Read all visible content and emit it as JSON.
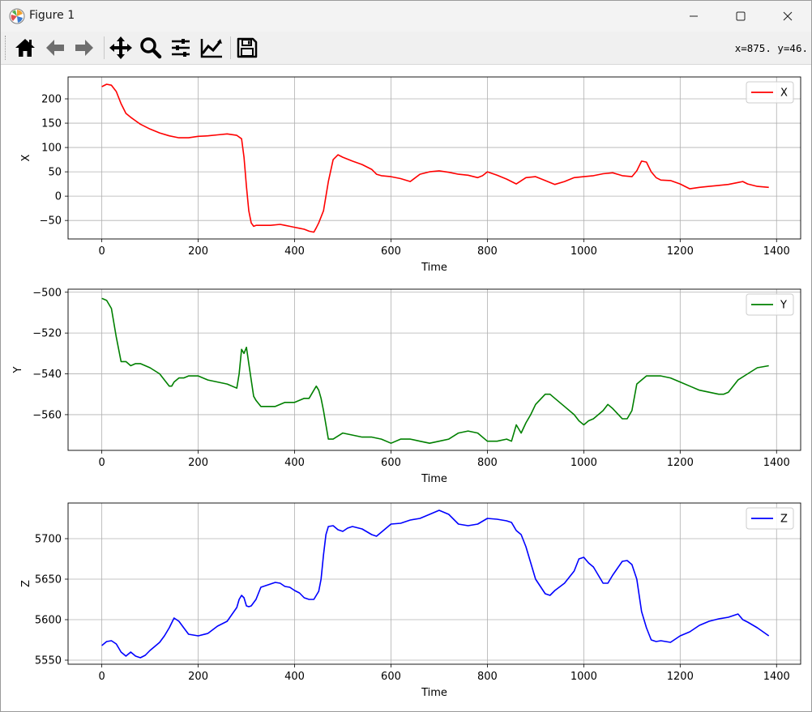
{
  "window": {
    "title": "Figure 1",
    "controls": [
      "minimize",
      "maximize",
      "close"
    ]
  },
  "toolbar": {
    "buttons": [
      {
        "name": "home-icon",
        "tooltip": "Reset original view"
      },
      {
        "name": "back-arrow-icon",
        "tooltip": "Back to previous view"
      },
      {
        "name": "forward-arrow-icon",
        "tooltip": "Forward to next view"
      },
      {
        "name": "pan-move-icon",
        "tooltip": "Pan axes"
      },
      {
        "name": "zoom-magnifier-icon",
        "tooltip": "Zoom to rectangle"
      },
      {
        "name": "configure-subplots-icon",
        "tooltip": "Configure subplots"
      },
      {
        "name": "edit-axis-icon",
        "tooltip": "Edit axis, curve and image parameters"
      },
      {
        "name": "save-floppy-icon",
        "tooltip": "Save the figure"
      }
    ],
    "coords": "x=875.  y=46."
  },
  "colors": {
    "x_line": "#ff0000",
    "y_line": "#008000",
    "z_line": "#0000ff",
    "grid": "#b0b0b0"
  },
  "chart_data": [
    {
      "type": "line",
      "xlabel": "Time",
      "ylabel": "X",
      "xlim": [
        -70,
        1450
      ],
      "ylim": [
        -88,
        245
      ],
      "xticks": [
        0,
        200,
        400,
        600,
        800,
        1000,
        1200,
        1400
      ],
      "yticks": [
        -50,
        0,
        50,
        100,
        150,
        200
      ],
      "grid": true,
      "legend": "top-right",
      "series": [
        {
          "name": "X",
          "color": "#ff0000",
          "x": [
            0,
            10,
            20,
            30,
            40,
            50,
            60,
            70,
            80,
            100,
            120,
            140,
            160,
            180,
            200,
            220,
            240,
            260,
            280,
            290,
            295,
            300,
            305,
            310,
            315,
            320,
            330,
            350,
            370,
            380,
            390,
            400,
            410,
            420,
            430,
            440,
            445,
            450,
            460,
            470,
            480,
            490,
            500,
            520,
            540,
            560,
            570,
            580,
            600,
            620,
            640,
            660,
            680,
            700,
            720,
            740,
            760,
            780,
            790,
            800,
            820,
            840,
            860,
            880,
            900,
            920,
            940,
            960,
            980,
            1000,
            1020,
            1040,
            1060,
            1080,
            1100,
            1110,
            1120,
            1130,
            1140,
            1150,
            1160,
            1180,
            1200,
            1220,
            1240,
            1260,
            1280,
            1300,
            1320,
            1330,
            1340,
            1360,
            1384
          ],
          "y": [
            225,
            230,
            228,
            215,
            190,
            170,
            162,
            155,
            148,
            138,
            130,
            124,
            120,
            120,
            123,
            124,
            126,
            128,
            125,
            118,
            80,
            20,
            -30,
            -55,
            -62,
            -60,
            -60,
            -60,
            -58,
            -60,
            -62,
            -64,
            -66,
            -68,
            -72,
            -74,
            -65,
            -55,
            -30,
            30,
            75,
            85,
            80,
            72,
            65,
            55,
            45,
            42,
            40,
            36,
            30,
            45,
            50,
            52,
            49,
            45,
            43,
            38,
            42,
            50,
            43,
            35,
            25,
            38,
            40,
            32,
            24,
            30,
            38,
            40,
            42,
            46,
            48,
            42,
            40,
            52,
            72,
            70,
            50,
            38,
            33,
            32,
            25,
            15,
            18,
            20,
            22,
            24,
            28,
            30,
            25,
            20,
            18
          ]
        }
      ]
    },
    {
      "type": "line",
      "xlabel": "Time",
      "ylabel": "Y",
      "xlim": [
        -70,
        1450
      ],
      "ylim": [
        -577.5,
        -498.5
      ],
      "xticks": [
        0,
        200,
        400,
        600,
        800,
        1000,
        1200,
        1400
      ],
      "yticks": [
        -500,
        -520,
        -540,
        -560
      ],
      "grid": true,
      "legend": "top-right",
      "series": [
        {
          "name": "Y",
          "color": "#008000",
          "x": [
            0,
            10,
            20,
            30,
            40,
            50,
            60,
            70,
            80,
            100,
            120,
            140,
            145,
            150,
            160,
            170,
            180,
            200,
            220,
            240,
            260,
            280,
            285,
            290,
            295,
            300,
            305,
            310,
            315,
            320,
            330,
            340,
            360,
            380,
            400,
            420,
            430,
            440,
            445,
            450,
            455,
            460,
            470,
            480,
            500,
            520,
            540,
            560,
            580,
            600,
            620,
            640,
            660,
            680,
            700,
            720,
            740,
            760,
            780,
            800,
            820,
            840,
            850,
            860,
            870,
            880,
            890,
            900,
            920,
            930,
            940,
            960,
            980,
            990,
            1000,
            1010,
            1020,
            1040,
            1050,
            1060,
            1080,
            1090,
            1100,
            1110,
            1120,
            1130,
            1140,
            1160,
            1180,
            1200,
            1220,
            1240,
            1260,
            1280,
            1290,
            1300,
            1310,
            1320,
            1340,
            1360,
            1384
          ],
          "y": [
            -503,
            -504,
            -508,
            -522,
            -534,
            -534,
            -536,
            -535,
            -535,
            -537,
            -540,
            -546,
            -546,
            -544,
            -542,
            -542,
            -541,
            -541,
            -543,
            -544,
            -545,
            -547,
            -540,
            -528,
            -530,
            -527,
            -535,
            -543,
            -551,
            -553,
            -556,
            -556,
            -556,
            -554,
            -554,
            -552,
            -552,
            -548,
            -546,
            -548,
            -552,
            -558,
            -572,
            -572,
            -569,
            -570,
            -571,
            -571,
            -572,
            -574,
            -572,
            -572,
            -573,
            -574,
            -573,
            -572,
            -569,
            -568,
            -569,
            -573,
            -573,
            -572,
            -573,
            -565,
            -569,
            -564,
            -560,
            -555,
            -550,
            -550,
            -552,
            -556,
            -560,
            -563,
            -565,
            -563,
            -562,
            -558,
            -555,
            -557,
            -562,
            -562,
            -558,
            -545,
            -543,
            -541,
            -541,
            -541,
            -542,
            -544,
            -546,
            -548,
            -549,
            -550,
            -550,
            -549,
            -546,
            -543,
            -540,
            -537,
            -536
          ]
        }
      ]
    },
    {
      "type": "line",
      "xlabel": "Time",
      "ylabel": "Z",
      "xlim": [
        -70,
        1450
      ],
      "ylim": [
        5545,
        5744
      ],
      "xticks": [
        0,
        200,
        400,
        600,
        800,
        1000,
        1200,
        1400
      ],
      "yticks": [
        5550,
        5600,
        5650,
        5700
      ],
      "grid": true,
      "legend": "top-right",
      "series": [
        {
          "name": "Z",
          "color": "#0000ff",
          "x": [
            0,
            10,
            20,
            30,
            40,
            50,
            60,
            70,
            80,
            90,
            100,
            110,
            120,
            130,
            140,
            150,
            160,
            170,
            180,
            200,
            220,
            240,
            260,
            280,
            285,
            290,
            295,
            300,
            305,
            310,
            320,
            330,
            340,
            360,
            370,
            380,
            390,
            400,
            410,
            420,
            430,
            440,
            445,
            450,
            455,
            460,
            465,
            470,
            480,
            490,
            500,
            510,
            520,
            540,
            560,
            570,
            580,
            600,
            620,
            640,
            660,
            680,
            700,
            720,
            740,
            760,
            780,
            800,
            820,
            840,
            850,
            860,
            870,
            880,
            900,
            920,
            930,
            940,
            960,
            980,
            990,
            1000,
            1010,
            1020,
            1040,
            1050,
            1060,
            1080,
            1090,
            1100,
            1110,
            1120,
            1130,
            1140,
            1150,
            1160,
            1180,
            1200,
            1220,
            1240,
            1260,
            1280,
            1300,
            1320,
            1330,
            1340,
            1360,
            1384
          ],
          "y": [
            5568,
            5573,
            5574,
            5570,
            5560,
            5555,
            5560,
            5555,
            5553,
            5556,
            5562,
            5567,
            5572,
            5580,
            5590,
            5602,
            5598,
            5590,
            5582,
            5580,
            5583,
            5592,
            5598,
            5615,
            5625,
            5630,
            5627,
            5617,
            5616,
            5617,
            5625,
            5640,
            5642,
            5646,
            5645,
            5641,
            5640,
            5636,
            5633,
            5627,
            5625,
            5625,
            5630,
            5635,
            5650,
            5680,
            5705,
            5715,
            5716,
            5711,
            5709,
            5713,
            5715,
            5712,
            5705,
            5703,
            5708,
            5718,
            5719,
            5723,
            5725,
            5730,
            5735,
            5730,
            5718,
            5716,
            5718,
            5725,
            5724,
            5722,
            5720,
            5710,
            5705,
            5690,
            5650,
            5632,
            5630,
            5636,
            5645,
            5660,
            5675,
            5677,
            5670,
            5665,
            5645,
            5645,
            5655,
            5672,
            5673,
            5668,
            5650,
            5610,
            5590,
            5575,
            5573,
            5574,
            5572,
            5580,
            5585,
            5593,
            5598,
            5601,
            5603,
            5607,
            5600,
            5597,
            5590,
            5580
          ]
        }
      ]
    }
  ]
}
